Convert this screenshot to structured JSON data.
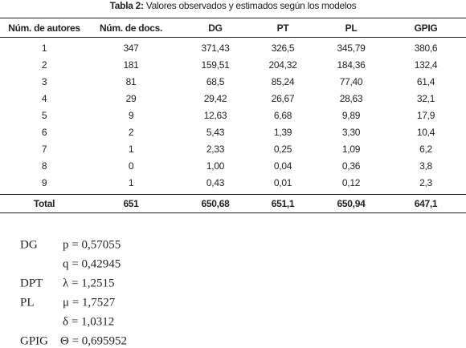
{
  "caption": {
    "label": "Tabla 2:",
    "text": "Valores observados y estimados según los modelos"
  },
  "table": {
    "headers": [
      "Núm. de autores",
      "Núm. de docs.",
      "DG",
      "PT",
      "PL",
      "GPIG"
    ],
    "rows": [
      [
        "1",
        "347",
        "371,43",
        "326,5",
        "345,79",
        "380,6"
      ],
      [
        "2",
        "181",
        "159,51",
        "204,32",
        "184,36",
        "132,4"
      ],
      [
        "3",
        "81",
        "68,5",
        "85,24",
        "77,40",
        "61,4"
      ],
      [
        "4",
        "29",
        "29,42",
        "26,67",
        "28,63",
        "32,1"
      ],
      [
        "5",
        "9",
        "12,63",
        "6,68",
        "9,89",
        "17,9"
      ],
      [
        "6",
        "2",
        "5,43",
        "1,39",
        "3,30",
        "10,4"
      ],
      [
        "7",
        "1",
        "2,33",
        "0,25",
        "1,09",
        "6,2"
      ],
      [
        "8",
        "0",
        "1,00",
        "0,04",
        "0,36",
        "3,8"
      ],
      [
        "9",
        "1",
        "0,43",
        "0,01",
        "0,12",
        "2,3"
      ]
    ],
    "total": [
      "Total",
      "651",
      "650,68",
      "651,1",
      "650,94",
      "647,1"
    ]
  },
  "parameters": [
    {
      "model": "DG",
      "values": [
        "p = 0,57055",
        "q = 0,42945"
      ]
    },
    {
      "model": "DPT",
      "values": [
        "λ = 1,2515"
      ]
    },
    {
      "model": "PL",
      "values": [
        "μ = 1,7527",
        "δ = 1,0312"
      ]
    },
    {
      "model": "GPIG",
      "values": [
        "Θ = 0,695952"
      ]
    }
  ]
}
